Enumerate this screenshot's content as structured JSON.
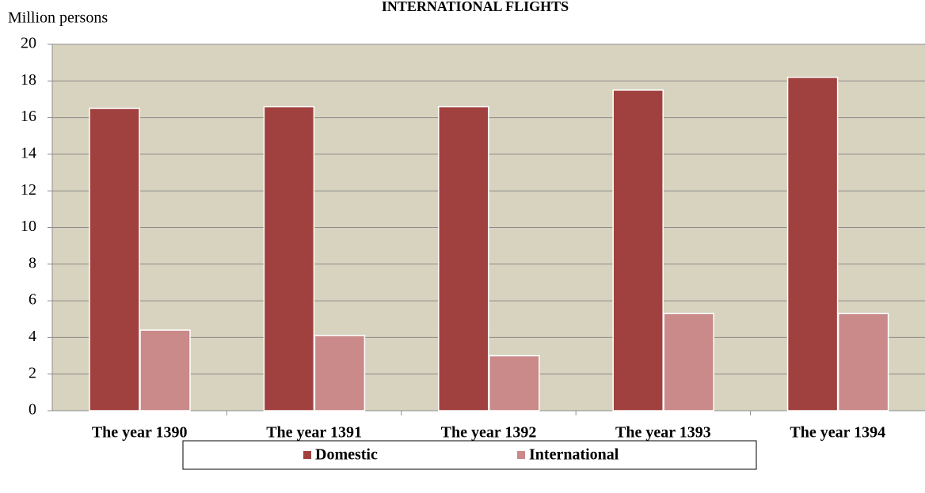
{
  "chart_data": {
    "type": "bar",
    "title": "INTERNATIONAL FLIGHTS",
    "y_label": "Million persons",
    "categories": [
      "The year 1390",
      "The year 1391",
      "The year 1392",
      "The year 1393",
      "The year 1394"
    ],
    "series": [
      {
        "name": "Domestic",
        "color": "#a0413f",
        "values": [
          16.5,
          16.6,
          16.6,
          17.5,
          18.2
        ]
      },
      {
        "name": "International",
        "color": "#c98a89",
        "values": [
          4.4,
          4.1,
          3.0,
          5.3,
          5.3
        ]
      }
    ],
    "ylim": [
      0,
      20
    ],
    "yticks": [
      0,
      2,
      4,
      6,
      8,
      10,
      12,
      14,
      16,
      18,
      20
    ],
    "grid": true,
    "legend": "bottom"
  }
}
